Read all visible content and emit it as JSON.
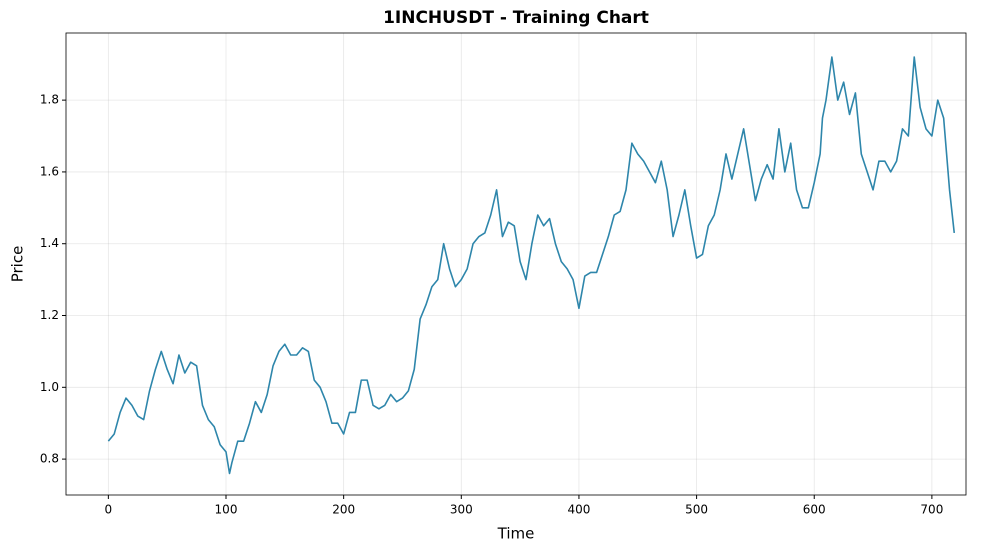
{
  "chart_data": {
    "type": "line",
    "title": "1INCHUSDT - Training Chart",
    "x_label": "Time",
    "y_label": "Price",
    "x": [
      0,
      5,
      10,
      15,
      20,
      25,
      30,
      35,
      40,
      45,
      50,
      55,
      60,
      65,
      70,
      75,
      80,
      85,
      90,
      95,
      100,
      103,
      105,
      110,
      115,
      120,
      125,
      130,
      135,
      140,
      145,
      150,
      155,
      160,
      165,
      170,
      175,
      180,
      185,
      190,
      195,
      200,
      205,
      210,
      215,
      220,
      225,
      230,
      235,
      240,
      245,
      250,
      255,
      260,
      265,
      270,
      275,
      280,
      285,
      290,
      295,
      300,
      305,
      310,
      315,
      320,
      325,
      330,
      335,
      340,
      345,
      350,
      355,
      360,
      365,
      370,
      375,
      380,
      385,
      390,
      395,
      400,
      405,
      410,
      415,
      420,
      425,
      430,
      435,
      440,
      445,
      450,
      455,
      460,
      465,
      470,
      475,
      480,
      485,
      490,
      495,
      500,
      505,
      510,
      515,
      520,
      525,
      530,
      535,
      540,
      545,
      550,
      555,
      560,
      565,
      570,
      575,
      580,
      585,
      590,
      595,
      600,
      605,
      607,
      610,
      615,
      620,
      625,
      630,
      635,
      640,
      645,
      650,
      655,
      660,
      665,
      670,
      675,
      680,
      685,
      690,
      695,
      700,
      705,
      710,
      715,
      719
    ],
    "values": [
      0.85,
      0.87,
      0.93,
      0.97,
      0.95,
      0.92,
      0.91,
      0.99,
      1.05,
      1.1,
      1.05,
      1.01,
      1.09,
      1.04,
      1.07,
      1.06,
      0.95,
      0.91,
      0.89,
      0.84,
      0.82,
      0.76,
      0.79,
      0.85,
      0.85,
      0.9,
      0.96,
      0.93,
      0.98,
      1.06,
      1.1,
      1.12,
      1.09,
      1.09,
      1.11,
      1.1,
      1.02,
      1.0,
      0.96,
      0.9,
      0.9,
      0.87,
      0.93,
      0.93,
      1.02,
      1.02,
      0.95,
      0.94,
      0.95,
      0.98,
      0.96,
      0.97,
      0.99,
      1.05,
      1.19,
      1.23,
      1.28,
      1.3,
      1.4,
      1.33,
      1.28,
      1.3,
      1.33,
      1.4,
      1.42,
      1.43,
      1.48,
      1.55,
      1.42,
      1.46,
      1.45,
      1.35,
      1.3,
      1.4,
      1.48,
      1.45,
      1.47,
      1.4,
      1.35,
      1.33,
      1.3,
      1.22,
      1.31,
      1.32,
      1.32,
      1.37,
      1.42,
      1.48,
      1.49,
      1.55,
      1.68,
      1.65,
      1.63,
      1.6,
      1.57,
      1.63,
      1.55,
      1.42,
      1.48,
      1.55,
      1.45,
      1.36,
      1.37,
      1.45,
      1.48,
      1.55,
      1.65,
      1.58,
      1.65,
      1.72,
      1.62,
      1.52,
      1.58,
      1.62,
      1.58,
      1.72,
      1.6,
      1.68,
      1.55,
      1.5,
      1.5,
      1.57,
      1.65,
      1.75,
      1.8,
      1.92,
      1.8,
      1.85,
      1.76,
      1.82,
      1.65,
      1.6,
      1.55,
      1.63,
      1.63,
      1.6,
      1.63,
      1.72,
      1.7,
      1.92,
      1.78,
      1.72,
      1.7,
      1.8,
      1.75,
      1.55,
      1.43
    ],
    "color": "#2e86ab",
    "xlim": [
      -36,
      729
    ],
    "ylim": [
      0.7,
      1.987
    ],
    "xticks": [
      0,
      100,
      200,
      300,
      400,
      500,
      600,
      700
    ],
    "yticks": [
      0.8,
      {
        "value": 1,
        "label": "1.0"
      },
      1.2,
      1.4,
      1.6,
      1.8
    ],
    "grid": true
  }
}
